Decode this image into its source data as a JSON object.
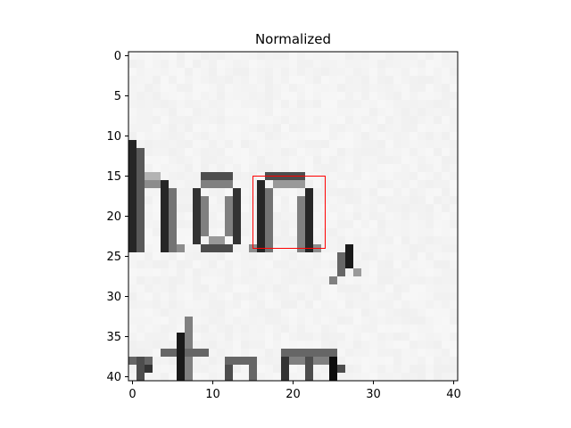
{
  "chart_data": {
    "type": "heatmap",
    "title": "Normalized",
    "xlabel": "",
    "ylabel": "",
    "grid": false,
    "colormap": "gray",
    "rows": 41,
    "cols": 41,
    "xlim": [
      -0.5,
      40.5
    ],
    "ylim": [
      40.5,
      -0.5
    ],
    "x_ticks": [
      0,
      10,
      20,
      30,
      40
    ],
    "y_ticks": [
      0,
      5,
      10,
      15,
      20,
      25,
      30,
      35,
      40
    ],
    "background_value": 0.97,
    "image_content": "handwritten text fragment 'hon,' with partial next line",
    "highlight_box": {
      "color": "#ff0000",
      "x_range": [
        15,
        24
      ],
      "y_range": [
        15,
        24
      ]
    }
  }
}
